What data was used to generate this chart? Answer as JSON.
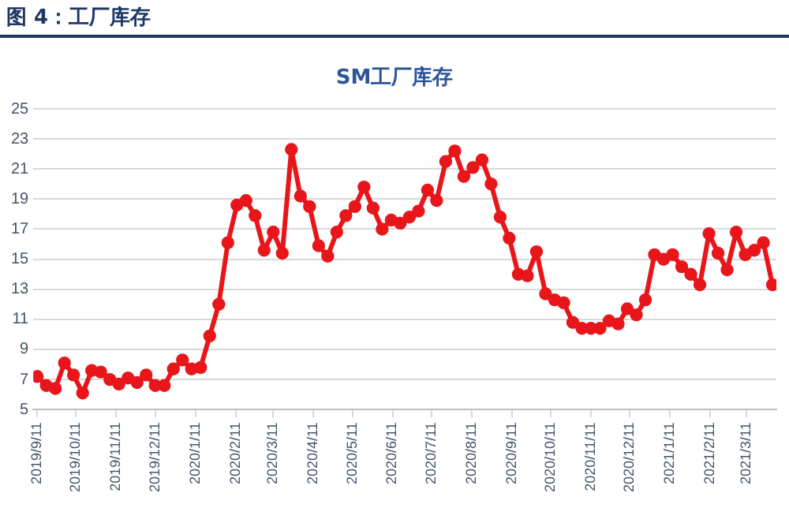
{
  "chart_data": {
    "type": "line",
    "title": "图 4：工厂库存",
    "subtitle": "SM工厂库存",
    "x": [
      "2019-09-11",
      "2019-09-18",
      "2019-09-25",
      "2019-10-02",
      "2019-10-09",
      "2019-10-16",
      "2019-10-23",
      "2019-10-30",
      "2019-11-06",
      "2019-11-13",
      "2019-11-20",
      "2019-11-27",
      "2019-12-04",
      "2019-12-11",
      "2019-12-18",
      "2019-12-25",
      "2020-01-01",
      "2020-01-08",
      "2020-01-15",
      "2020-01-22",
      "2020-01-29",
      "2020-02-05",
      "2020-02-12",
      "2020-02-19",
      "2020-02-26",
      "2020-03-04",
      "2020-03-11",
      "2020-03-18",
      "2020-03-25",
      "2020-04-01",
      "2020-04-08",
      "2020-04-15",
      "2020-04-22",
      "2020-04-29",
      "2020-05-06",
      "2020-05-13",
      "2020-05-20",
      "2020-05-27",
      "2020-06-03",
      "2020-06-10",
      "2020-06-17",
      "2020-06-24",
      "2020-07-01",
      "2020-07-08",
      "2020-07-15",
      "2020-07-22",
      "2020-07-29",
      "2020-08-05",
      "2020-08-12",
      "2020-08-19",
      "2020-08-26",
      "2020-09-02",
      "2020-09-09",
      "2020-09-16",
      "2020-09-23",
      "2020-09-30",
      "2020-10-07",
      "2020-10-14",
      "2020-10-21",
      "2020-10-28",
      "2020-11-04",
      "2020-11-11",
      "2020-11-18",
      "2020-11-25",
      "2020-12-02",
      "2020-12-09",
      "2020-12-16",
      "2020-12-23",
      "2020-12-30",
      "2021-01-06",
      "2021-01-13",
      "2021-01-20",
      "2021-01-27",
      "2021-02-03",
      "2021-02-10",
      "2021-02-17",
      "2021-02-24",
      "2021-03-03",
      "2021-03-10",
      "2021-03-17",
      "2021-03-24",
      "2021-03-31"
    ],
    "series": [
      {
        "color": "#e8161a",
        "values": [
          7.2,
          6.6,
          6.4,
          8.1,
          7.3,
          6.1,
          7.6,
          7.5,
          7.0,
          6.7,
          7.1,
          6.8,
          7.3,
          6.6,
          6.6,
          7.7,
          8.3,
          7.7,
          7.8,
          9.9,
          12.0,
          16.1,
          18.6,
          18.9,
          17.9,
          15.6,
          16.8,
          15.4,
          22.3,
          19.2,
          18.5,
          15.9,
          15.2,
          16.8,
          17.9,
          18.5,
          19.8,
          18.4,
          17.0,
          17.6,
          17.4,
          17.8,
          18.2,
          19.6,
          18.9,
          21.5,
          22.2,
          20.5,
          21.1,
          21.6,
          20.0,
          17.8,
          16.4,
          14.0,
          13.9,
          15.5,
          12.7,
          12.3,
          12.1,
          10.8,
          10.4,
          10.4,
          10.4,
          10.9,
          10.7,
          11.7,
          11.3,
          12.3,
          15.3,
          15.0,
          15.3,
          14.5,
          14.0,
          13.3,
          16.7,
          15.4,
          14.3,
          16.8,
          15.3,
          15.6,
          16.1,
          13.3
        ]
      }
    ],
    "xlim": [
      "2019-09-08",
      "2021-04-03"
    ],
    "xticks": [
      {
        "value": "2019-09-11",
        "label": "2019/9/11"
      },
      {
        "value": "2019-10-11",
        "label": "2019/10/11"
      },
      {
        "value": "2019-11-11",
        "label": "2019/11/11"
      },
      {
        "value": "2019-12-11",
        "label": "2019/12/11"
      },
      {
        "value": "2020-01-11",
        "label": "2020/1/11"
      },
      {
        "value": "2020-02-11",
        "label": "2020/2/11"
      },
      {
        "value": "2020-03-11",
        "label": "2020/3/11"
      },
      {
        "value": "2020-04-11",
        "label": "2020/4/11"
      },
      {
        "value": "2020-05-11",
        "label": "2020/5/11"
      },
      {
        "value": "2020-06-11",
        "label": "2020/6/11"
      },
      {
        "value": "2020-07-11",
        "label": "2020/7/11"
      },
      {
        "value": "2020-08-11",
        "label": "2020/8/11"
      },
      {
        "value": "2020-09-11",
        "label": "2020/9/11"
      },
      {
        "value": "2020-10-11",
        "label": "2020/10/11"
      },
      {
        "value": "2020-11-11",
        "label": "2020/11/11"
      },
      {
        "value": "2020-12-11",
        "label": "2020/12/11"
      },
      {
        "value": "2021-01-11",
        "label": "2021/1/11"
      },
      {
        "value": "2021-02-11",
        "label": "2021/2/11"
      },
      {
        "value": "2021-03-11",
        "label": "2021/3/11"
      }
    ],
    "ylim": [
      5,
      25
    ],
    "yticks": [
      5,
      7,
      9,
      11,
      13,
      15,
      17,
      19,
      21,
      23,
      25
    ],
    "grid": "y",
    "legend": false,
    "marker": "circle",
    "line_style": "solid"
  }
}
